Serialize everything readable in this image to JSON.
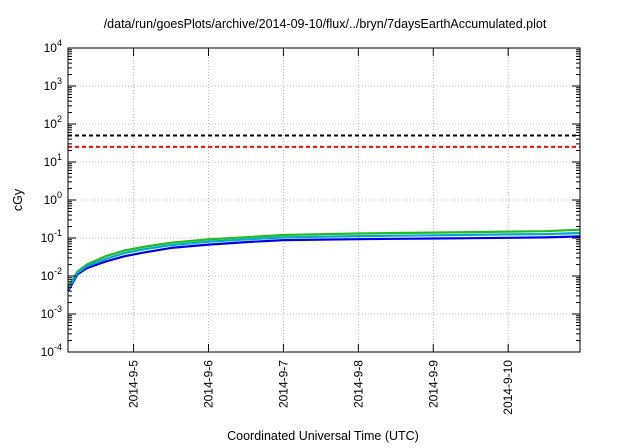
{
  "chart_data": {
    "type": "line",
    "title": "/data/run/goesPlots/archive/2014-09-10/flux/../bryn/7daysEarthAccumulated.plot",
    "xlabel": "Coordinated Universal Time (UTC)",
    "ylabel": "cGy",
    "y_scale": "log",
    "ylim": [
      0.0001,
      10000
    ],
    "xlim": [
      "2014-09-04 03:00",
      "2014-09-10 23:00"
    ],
    "x_ticks": [
      "2014-9-5",
      "2014-9-6",
      "2014-9-7",
      "2014-9-8",
      "2014-9-9",
      "2014-9-10"
    ],
    "y_ticks": [
      {
        "base": "10",
        "exp": "-4",
        "value": 0.0001
      },
      {
        "base": "10",
        "exp": "-3",
        "value": 0.001
      },
      {
        "base": "10",
        "exp": "-2",
        "value": 0.01
      },
      {
        "base": "10",
        "exp": "-1",
        "value": 0.1
      },
      {
        "base": "10",
        "exp": "0",
        "value": 1
      },
      {
        "base": "10",
        "exp": "1",
        "value": 10
      },
      {
        "base": "10",
        "exp": "2",
        "value": 100
      },
      {
        "base": "10",
        "exp": "3",
        "value": 1000
      },
      {
        "base": "10",
        "exp": "4",
        "value": 10000
      }
    ],
    "grid": true,
    "thresholds": [
      {
        "value": 50,
        "color": "#000000",
        "style": "dashed"
      },
      {
        "value": 25,
        "color": "#ff0000",
        "style": "dashed"
      }
    ],
    "x": [
      "2014-09-04 03:00",
      "2014-09-04 06:00",
      "2014-09-04 09:00",
      "2014-09-04 15:00",
      "2014-09-04 21:00",
      "2014-09-05 03:00",
      "2014-09-05 12:00",
      "2014-09-06 00:00",
      "2014-09-06 12:00",
      "2014-09-07 00:00",
      "2014-09-07 12:00",
      "2014-09-08 00:00",
      "2014-09-08 12:00",
      "2014-09-09 00:00",
      "2014-09-09 12:00",
      "2014-09-10 00:00",
      "2014-09-10 12:00",
      "2014-09-10 23:00"
    ],
    "series": [
      {
        "color": "#22bb22",
        "values": [
          0.005,
          0.013,
          0.02,
          0.033,
          0.047,
          0.058,
          0.075,
          0.092,
          0.105,
          0.12,
          0.126,
          0.131,
          0.135,
          0.139,
          0.143,
          0.147,
          0.151,
          0.165
        ]
      },
      {
        "color": "#0000ee",
        "values": [
          0.004,
          0.011,
          0.016,
          0.024,
          0.033,
          0.041,
          0.055,
          0.067,
          0.078,
          0.088,
          0.091,
          0.093,
          0.095,
          0.097,
          0.099,
          0.101,
          0.104,
          0.11
        ]
      },
      {
        "color": "#00aacc",
        "values": [
          0.0045,
          0.012,
          0.018,
          0.028,
          0.04,
          0.05,
          0.065,
          0.08,
          0.092,
          0.104,
          0.108,
          0.112,
          0.115,
          0.118,
          0.121,
          0.124,
          0.127,
          0.135
        ]
      }
    ]
  }
}
